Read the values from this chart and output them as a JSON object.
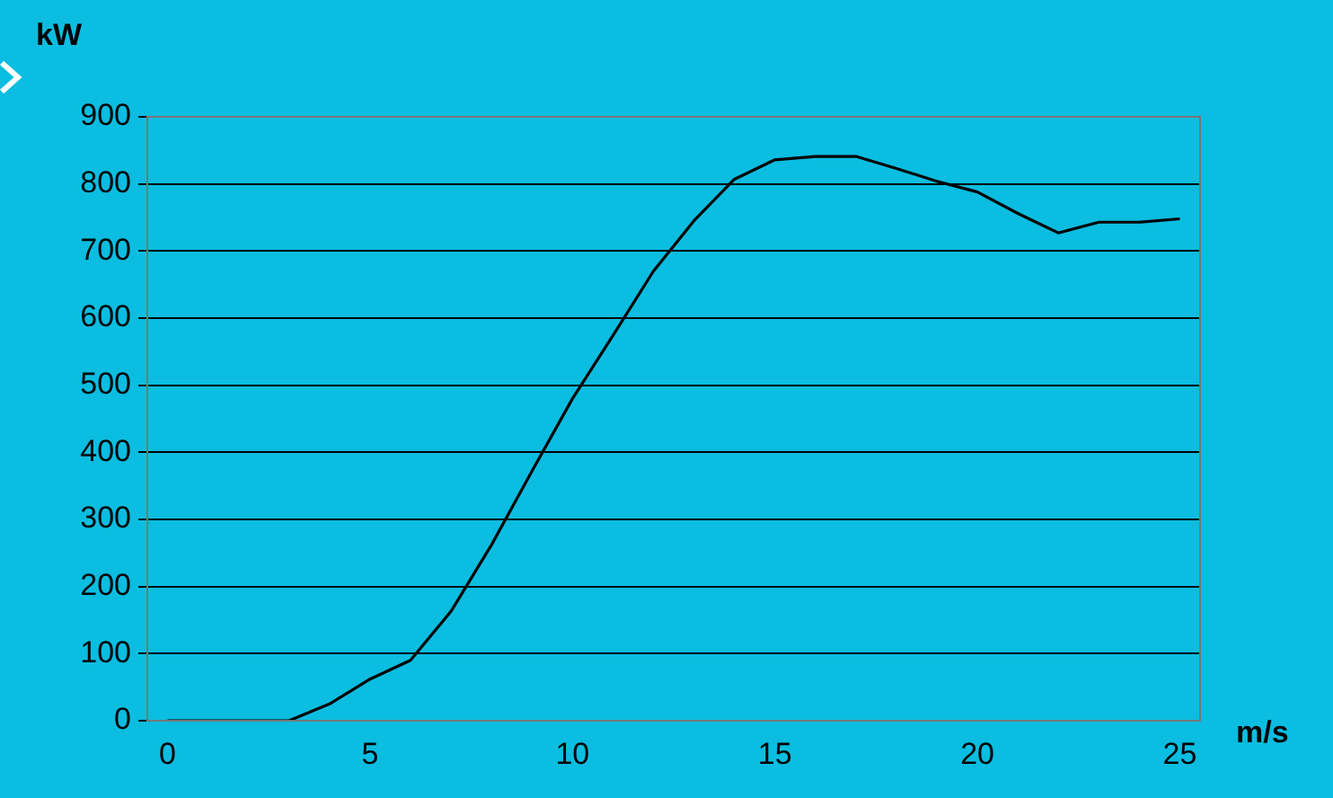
{
  "chart_data": {
    "type": "line",
    "xlabel": "m/s",
    "ylabel": "kW",
    "x": [
      0,
      1,
      2,
      3,
      4,
      5,
      6,
      7,
      8,
      9,
      10,
      11,
      12,
      13,
      14,
      15,
      16,
      17,
      18,
      19,
      20,
      21,
      22,
      23,
      24,
      25
    ],
    "series": [
      {
        "color": "#000000",
        "values": [
          0,
          0,
          0,
          0,
          25,
          62,
          90,
          163,
          262,
          372,
          480,
          574,
          670,
          745,
          807,
          836,
          841,
          841,
          823,
          804,
          788,
          756,
          727,
          743,
          743,
          748
        ]
      }
    ],
    "xlim": [
      -0.5,
      25.5
    ],
    "xticks": [
      0,
      5,
      10,
      15,
      20,
      25
    ],
    "ylim": [
      0,
      900
    ],
    "yticks": [
      0,
      100,
      200,
      300,
      400,
      500,
      600,
      700,
      800,
      900
    ],
    "grid": "y",
    "legend": false,
    "marker": "none",
    "line_style": "solid"
  }
}
